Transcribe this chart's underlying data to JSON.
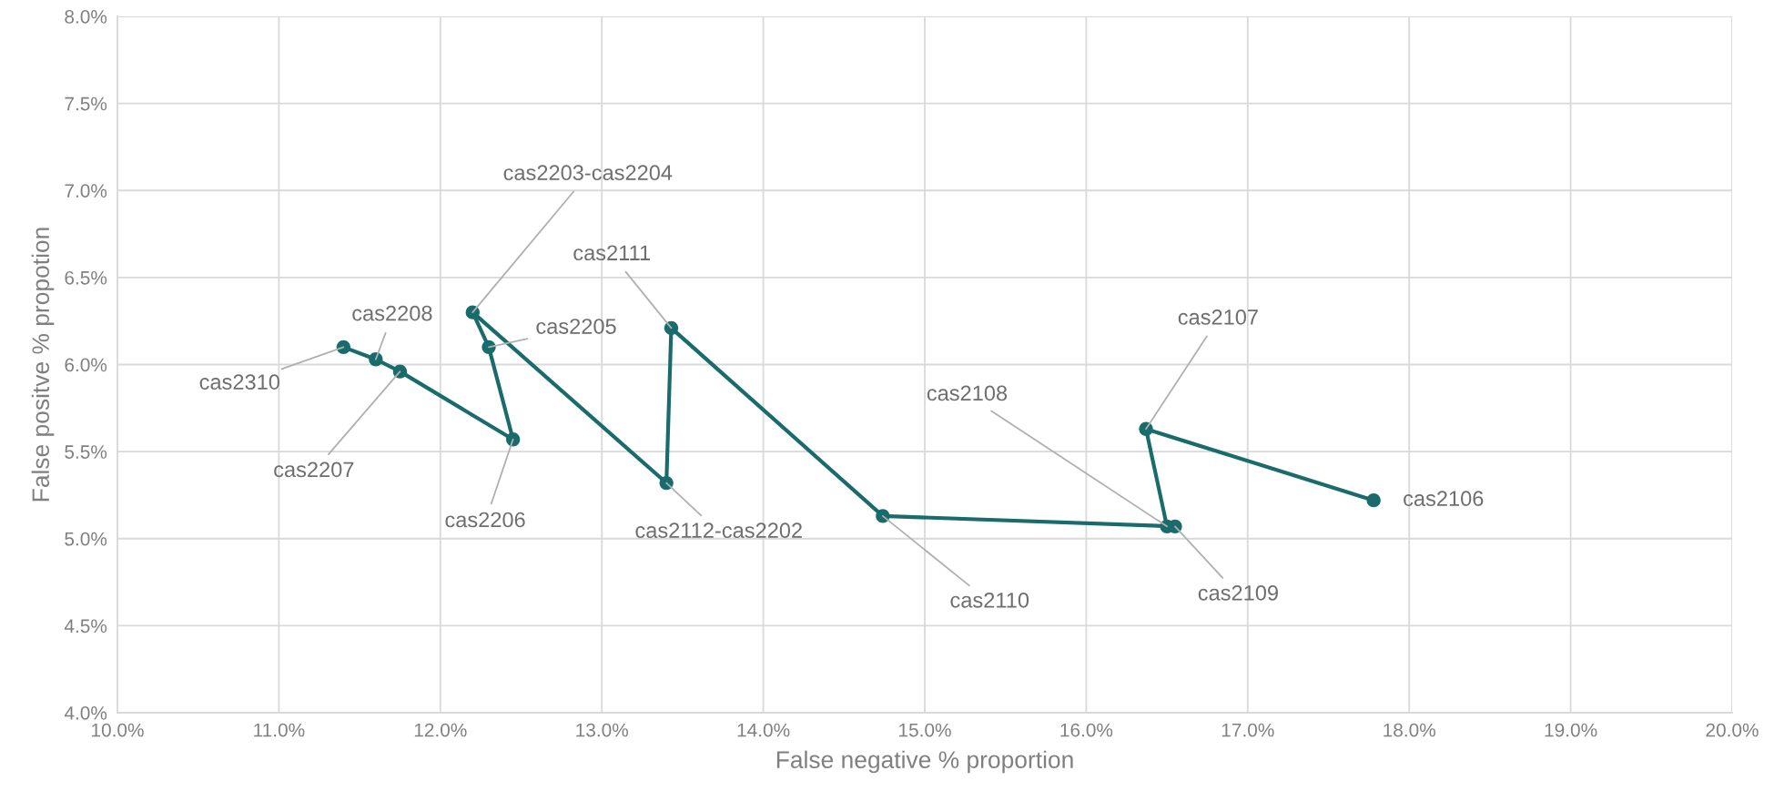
{
  "chart_data": {
    "type": "line",
    "xlabel": "False negative % proportion",
    "ylabel": "False positve % propotion",
    "series": [
      {
        "color": "#1a6b6b",
        "x": [
          17.78,
          16.37,
          16.5,
          16.55,
          14.74,
          13.43,
          13.4,
          12.2,
          12.3,
          12.45,
          11.75,
          11.6,
          11.4
        ],
        "values": [
          5.22,
          5.63,
          5.07,
          5.07,
          5.13,
          6.21,
          5.32,
          6.3,
          6.1,
          5.57,
          5.96,
          6.03,
          6.1
        ]
      }
    ],
    "marker": "circle",
    "line_style": "solid",
    "grid": true,
    "legend": false,
    "xlim": [
      10,
      20
    ],
    "xticks": [
      {
        "value": 10,
        "label": "10.0%"
      },
      {
        "value": 11,
        "label": "11.0%"
      },
      {
        "value": 12,
        "label": "12.0%"
      },
      {
        "value": 13,
        "label": "13.0%"
      },
      {
        "value": 14,
        "label": "14.0%"
      },
      {
        "value": 15,
        "label": "15.0%"
      },
      {
        "value": 16,
        "label": "16.0%"
      },
      {
        "value": 17,
        "label": "17.0%"
      },
      {
        "value": 18,
        "label": "18.0%"
      },
      {
        "value": 19,
        "label": "19.0%"
      },
      {
        "value": 20,
        "label": "20.0%"
      }
    ],
    "ylim": [
      4,
      8
    ],
    "yticks": [
      {
        "value": 4,
        "label": "4.0%"
      },
      {
        "value": 4.5,
        "label": "4.5%"
      },
      {
        "value": 5,
        "label": "5.0%"
      },
      {
        "value": 5.5,
        "label": "5.5%"
      },
      {
        "value": 6,
        "label": "6.0%"
      },
      {
        "value": 6.5,
        "label": "6.5%"
      },
      {
        "value": 7,
        "label": "7.0%"
      },
      {
        "value": 7.5,
        "label": "7.5%"
      },
      {
        "value": 8,
        "label": "8.0%"
      }
    ],
    "annotations": [
      {
        "text": "cas2106",
        "x": 17.78,
        "y": 5.22
      },
      {
        "text": "cas2107",
        "x": 16.37,
        "y": 5.63
      },
      {
        "text": "cas2108",
        "x": 16.5,
        "y": 5.07
      },
      {
        "text": "cas2109",
        "x": 16.55,
        "y": 5.07
      },
      {
        "text": "cas2110",
        "x": 14.74,
        "y": 5.13
      },
      {
        "text": "cas2111",
        "x": 13.43,
        "y": 6.21
      },
      {
        "text": "cas2112-cas2202",
        "x": 13.4,
        "y": 5.32
      },
      {
        "text": "cas2203-cas2204",
        "x": 12.2,
        "y": 6.3
      },
      {
        "text": "cas2205",
        "x": 12.3,
        "y": 6.1
      },
      {
        "text": "cas2206",
        "x": 12.45,
        "y": 5.57
      },
      {
        "text": "cas2207",
        "x": 11.75,
        "y": 5.96
      },
      {
        "text": "cas2208",
        "x": 11.6,
        "y": 6.03
      },
      {
        "text": "cas2310",
        "x": 11.4,
        "y": 6.1
      }
    ]
  }
}
